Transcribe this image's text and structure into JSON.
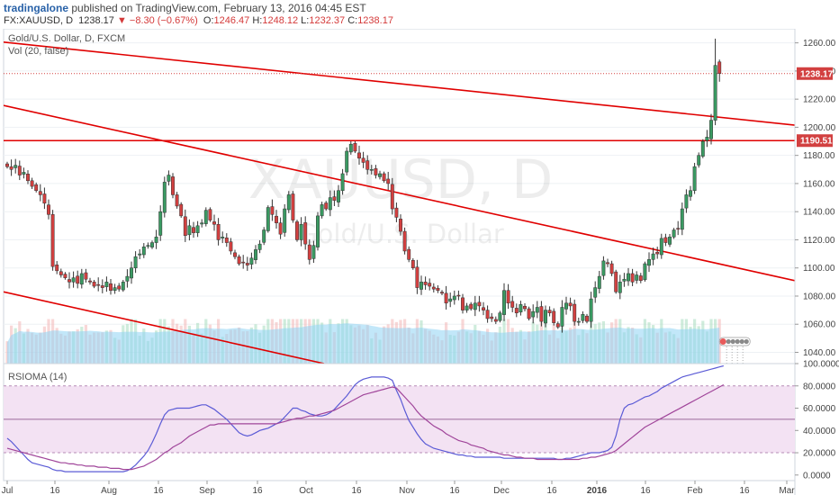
{
  "header": {
    "author": "tradingalone",
    "published": "published on TradingView.com, February 13, 2016 04:45 EST",
    "symbol": "FX:XAUUSD, D",
    "last": "1238.17",
    "change": "−8.30 (−0.67%)",
    "open_label": "O:",
    "open": "1246.47",
    "high_label": "H:",
    "high": "1248.12",
    "low_label": "L:",
    "low": "1232.37",
    "close_label": "C:",
    "close": "1238.17"
  },
  "main_pane": {
    "title": "Gold/U.S. Dollar, D, FXCM",
    "vol_label": "Vol (20, false)",
    "watermark_symbol": "XAUUSD, D",
    "watermark_name": "Gold/U.S. Dollar",
    "last_price_tag": "1238.17",
    "level_tag": "1190.51",
    "colors": {
      "up": "#3a9a62",
      "down": "#d24040",
      "trend": "#e00000",
      "vol": "#8fd3f4"
    }
  },
  "rsi_pane": {
    "title": "RSIOMA (14)"
  },
  "chart_data": [
    {
      "type": "candlestick",
      "title": "Gold/U.S. Dollar, D, FXCM",
      "price_ticks": [
        1040,
        1060,
        1080,
        1100,
        1120,
        1140,
        1160,
        1180,
        1200,
        1220,
        1240,
        1260
      ],
      "tick_labels": [
        "1040.00",
        "1060.00",
        "1080.00",
        "1100.00",
        "1120.00",
        "1140.00",
        "1160.00",
        "1180.00",
        "1200.00",
        "1220.00",
        "1240.00",
        "1260.00"
      ],
      "ylim": [
        1032,
        1270
      ],
      "x_labels": [
        "Jul",
        "16",
        "Aug",
        "16",
        "Sep",
        "16",
        "Oct",
        "16",
        "Nov",
        "16",
        "Dec",
        "16",
        "2016",
        "16",
        "Feb",
        "16",
        "Mar"
      ],
      "last_price": 1238.17,
      "horizontal_level": 1190.51,
      "closes": [
        1172,
        1170,
        1173,
        1166,
        1168,
        1162,
        1158,
        1155,
        1152,
        1146,
        1138,
        1101,
        1098,
        1095,
        1093,
        1090,
        1093,
        1089,
        1096,
        1092,
        1090,
        1087,
        1088,
        1086,
        1090,
        1084,
        1086,
        1085,
        1090,
        1094,
        1100,
        1108,
        1110,
        1115,
        1116,
        1118,
        1122,
        1140,
        1161,
        1166,
        1152,
        1144,
        1137,
        1123,
        1130,
        1125,
        1130,
        1132,
        1141,
        1134,
        1131,
        1120,
        1122,
        1118,
        1112,
        1108,
        1103,
        1104,
        1102,
        1107,
        1113,
        1117,
        1127,
        1143,
        1138,
        1132,
        1124,
        1142,
        1152,
        1134,
        1120,
        1131,
        1117,
        1106,
        1116,
        1137,
        1145,
        1142,
        1150,
        1148,
        1155,
        1167,
        1183,
        1188,
        1183,
        1178,
        1175,
        1170,
        1170,
        1166,
        1167,
        1162,
        1160,
        1142,
        1136,
        1126,
        1112,
        1106,
        1100,
        1086,
        1090,
        1088,
        1087,
        1085,
        1084,
        1082,
        1075,
        1078,
        1080,
        1080,
        1070,
        1073,
        1071,
        1075,
        1073,
        1070,
        1064,
        1064,
        1062,
        1068,
        1084,
        1075,
        1072,
        1068,
        1074,
        1071,
        1064,
        1069,
        1072,
        1062,
        1070,
        1068,
        1061,
        1058,
        1072,
        1075,
        1073,
        1062,
        1062,
        1067,
        1062,
        1078,
        1086,
        1094,
        1105,
        1103,
        1096,
        1083,
        1090,
        1092,
        1096,
        1090,
        1095,
        1091,
        1103,
        1106,
        1110,
        1110,
        1121,
        1118,
        1122,
        1127,
        1128,
        1142,
        1152,
        1155,
        1172,
        1180,
        1190,
        1193,
        1205,
        1244,
        1238
      ]
    },
    {
      "type": "line",
      "title": "RSIOMA (14)",
      "ticks": [
        0,
        20,
        40,
        60,
        80,
        100
      ],
      "tick_labels": [
        "0.0000",
        "20.0000",
        "40.0000",
        "60.0000",
        "80.0000",
        "100.0000"
      ],
      "ylim": [
        -5,
        100
      ],
      "levels": [
        20,
        50,
        80
      ],
      "series": [
        {
          "values": [
            33,
            30,
            26,
            22,
            18,
            14,
            11,
            10,
            9,
            8,
            7,
            5,
            4,
            4,
            3,
            3,
            3,
            3,
            3,
            3,
            3,
            3,
            3,
            3,
            3,
            3,
            3,
            3,
            3,
            4,
            6,
            9,
            13,
            17,
            22,
            29,
            37,
            46,
            54,
            58,
            59,
            60,
            60,
            60,
            60,
            61,
            62,
            63,
            63,
            61,
            59,
            56,
            53,
            50,
            46,
            42,
            38,
            36,
            35,
            36,
            38,
            40,
            41,
            42,
            44,
            46,
            48,
            52,
            56,
            60,
            60,
            58,
            57,
            55,
            54,
            53,
            53,
            54,
            56,
            59,
            63,
            67,
            71,
            76,
            81,
            84,
            86,
            87,
            88,
            88,
            88,
            88,
            87,
            85,
            76,
            68,
            58,
            49,
            43,
            37,
            32,
            28,
            26,
            24,
            23,
            22,
            21,
            20,
            19,
            18,
            18,
            17,
            17,
            16,
            16,
            16,
            16,
            16,
            16,
            16,
            15,
            15,
            15,
            15,
            15,
            15,
            15,
            15,
            15,
            15,
            15,
            15,
            15,
            14,
            14,
            15,
            15,
            16,
            17,
            18,
            19,
            20,
            20,
            20,
            21,
            22,
            25,
            35,
            50,
            60,
            63,
            64,
            66,
            68,
            70,
            71,
            73,
            75,
            78,
            80,
            82,
            84,
            86,
            88,
            89,
            90,
            91,
            92,
            93,
            94,
            95,
            96,
            97,
            98
          ]
        },
        {
          "values": [
            24,
            23,
            22,
            21,
            20,
            19,
            18,
            17,
            16,
            15,
            14,
            13,
            12,
            11,
            11,
            10,
            10,
            9,
            9,
            8,
            8,
            8,
            7,
            7,
            7,
            6,
            6,
            6,
            5,
            5,
            5,
            6,
            7,
            8,
            10,
            12,
            14,
            17,
            20,
            22,
            25,
            27,
            29,
            32,
            35,
            37,
            39,
            41,
            43,
            45,
            45,
            46,
            46,
            46,
            46,
            46,
            46,
            46,
            46,
            46,
            46,
            46,
            46,
            46,
            46,
            46,
            47,
            48,
            49,
            50,
            51,
            51,
            52,
            53,
            53,
            54,
            55,
            56,
            57,
            58,
            60,
            62,
            64,
            66,
            68,
            70,
            72,
            73,
            74,
            75,
            76,
            77,
            78,
            79,
            78,
            74,
            70,
            66,
            62,
            57,
            53,
            50,
            47,
            44,
            42,
            40,
            37,
            35,
            33,
            31,
            30,
            29,
            27,
            26,
            25,
            24,
            22,
            21,
            20,
            19,
            18,
            18,
            17,
            16,
            16,
            15,
            15,
            15,
            14,
            14,
            14,
            14,
            14,
            14,
            14,
            14,
            14,
            14,
            14,
            15,
            15,
            16,
            16,
            17,
            18,
            19,
            20,
            22,
            25,
            28,
            31,
            34,
            37,
            40,
            43,
            45,
            47,
            49,
            51,
            53,
            55,
            57,
            59,
            61,
            63,
            65,
            67,
            69,
            71,
            73,
            75,
            77,
            79,
            81
          ]
        }
      ]
    }
  ]
}
